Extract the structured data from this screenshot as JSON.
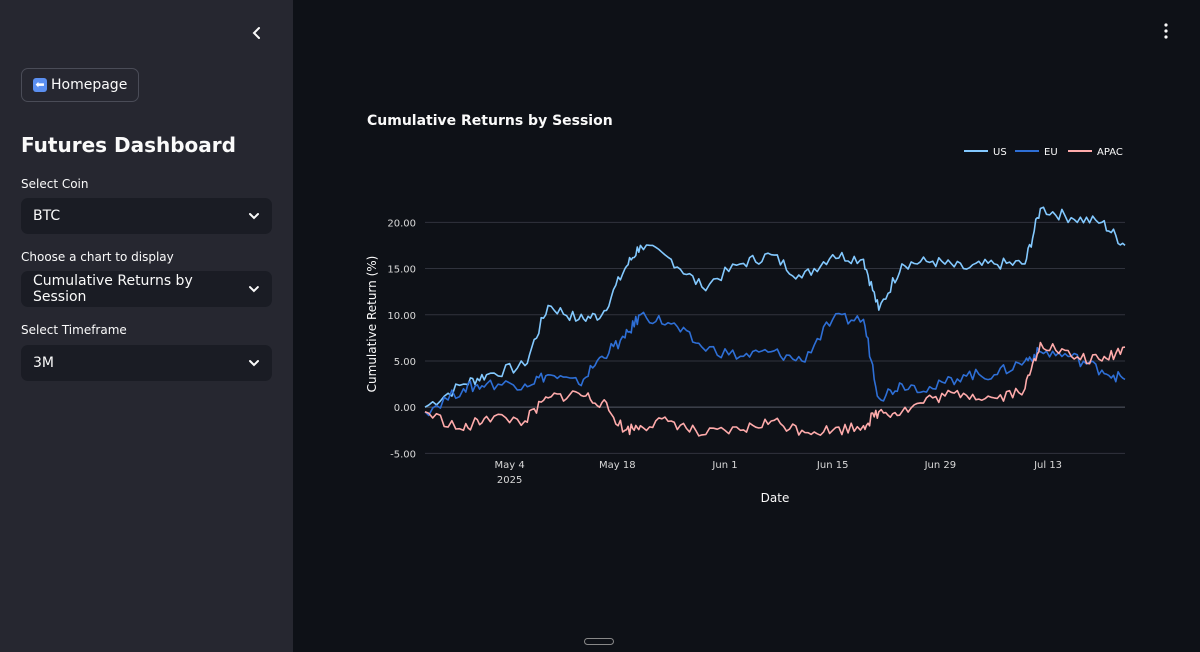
{
  "sidebar": {
    "home_button_label": "Homepage",
    "title": "Futures Dashboard",
    "coin_label": "Select Coin",
    "coin_value": "BTC",
    "chart_label": "Choose a chart to display",
    "chart_value": "Cumulative Returns by Session",
    "timeframe_label": "Select Timeframe",
    "timeframe_value": "3M"
  },
  "icons": {
    "collapse": "chevron-left-icon",
    "home": "left-arrow-icon",
    "dropdown": "chevron-down-icon",
    "menu": "kebab-menu-icon"
  },
  "chart_data": {
    "type": "line",
    "title": "Cumulative Returns by Session",
    "xlabel": "Date",
    "ylabel": "Cumulative Return (%)",
    "ylim": [
      -5.5,
      23.5
    ],
    "yticks": [
      "20.00",
      "15.00",
      "10.00",
      "5.00",
      "0.00",
      "-5.00"
    ],
    "xticks": [
      "May 4\n2025",
      "May 18",
      "Jun 1",
      "Jun 15",
      "Jun 29",
      "Jul 13"
    ],
    "xlim": [
      "2025-04-23",
      "2025-07-23"
    ],
    "legend_position": "top-right",
    "grid": true,
    "x": [
      "2025-04-23",
      "2025-04-28",
      "2025-05-01",
      "2025-05-06",
      "2025-05-09",
      "2025-05-13",
      "2025-05-16",
      "2025-05-19",
      "2025-05-21",
      "2025-05-25",
      "2025-05-29",
      "2025-06-03",
      "2025-06-07",
      "2025-06-11",
      "2025-06-15",
      "2025-06-19",
      "2025-06-21",
      "2025-06-24",
      "2025-06-28",
      "2025-07-02",
      "2025-07-06",
      "2025-07-10",
      "2025-07-12",
      "2025-07-16",
      "2025-07-20",
      "2025-07-23"
    ],
    "series": [
      {
        "name": "US",
        "color": "#83c9ff",
        "values": [
          0.0,
          2.5,
          3.5,
          4.5,
          11.0,
          9.5,
          10.0,
          15.0,
          17.5,
          16.0,
          13.0,
          15.5,
          16.5,
          14.0,
          16.5,
          16.0,
          10.5,
          15.5,
          15.8,
          15.0,
          15.5,
          15.5,
          21.5,
          20.5,
          20.0,
          17.5
        ]
      },
      {
        "name": "EU",
        "color": "#2e6fd6",
        "values": [
          -0.5,
          2.0,
          2.5,
          2.5,
          3.5,
          2.5,
          5.5,
          7.5,
          10.0,
          9.0,
          6.5,
          5.5,
          6.0,
          5.0,
          9.5,
          9.5,
          1.0,
          2.5,
          2.0,
          3.5,
          3.5,
          5.0,
          6.0,
          5.5,
          4.0,
          3.0
        ]
      },
      {
        "name": "APAC",
        "color": "#ffabab",
        "values": [
          -0.5,
          -2.5,
          -1.0,
          -1.5,
          1.0,
          1.5,
          0.5,
          -2.5,
          -2.0,
          -1.5,
          -3.0,
          -2.5,
          -1.5,
          -2.5,
          -2.5,
          -2.0,
          -0.5,
          -0.5,
          1.0,
          1.5,
          1.0,
          2.0,
          7.0,
          5.5,
          5.0,
          6.5
        ]
      }
    ]
  }
}
